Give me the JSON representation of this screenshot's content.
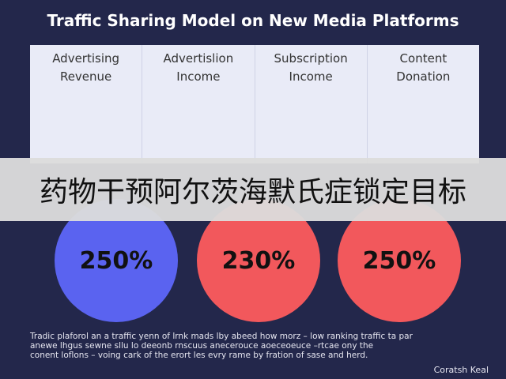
{
  "header": {
    "title": "Traffic Sharing Model on New Media Platforms"
  },
  "columns": [
    "Advertising\nRevenue",
    "Advertislion\nIncome",
    "Subscription\nIncome",
    "Content\nDonation"
  ],
  "banner": "药物干预阿尔茨海默氏症锁定目标",
  "circles": [
    "250%",
    "230%",
    "250%"
  ],
  "footer": {
    "lines": [
      "Tradic plaforol an a traffic yenn of lrnk mads lby abeed how morz – low ranking traffic ta par",
      "anewe lhgus sewne sllu lo deeonb rnscuus anecerouce aoeceoeuce –rtcae ony the",
      "conent loflons – voing cark of the erort les evry rame by fration of sase and herd."
    ],
    "signature": "Coratsh Keal"
  }
}
